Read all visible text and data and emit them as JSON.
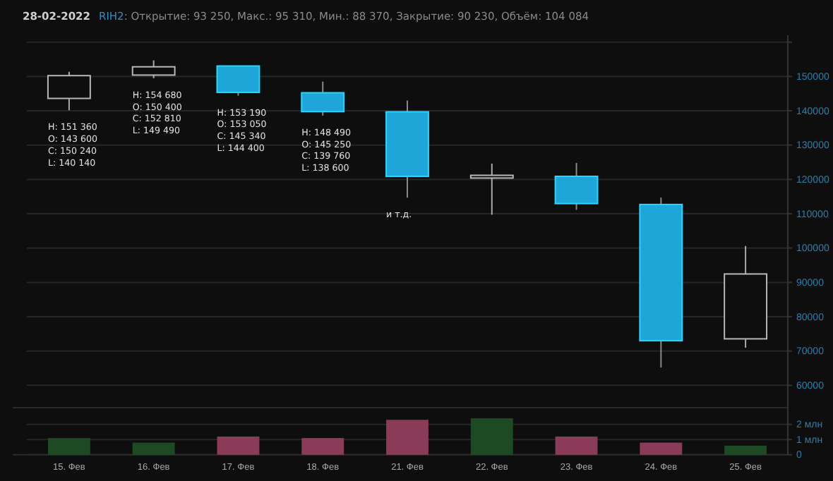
{
  "chart_data": [
    {
      "type": "candlestick",
      "title": "28-02-2022",
      "subtitle": "RIH2: Открытие: 93 250, Макс.: 95 310, Мин.: 88 370, Закрытие: 90 230, Объём: 104 084",
      "categories": [
        "15. Фев",
        "16. Фев",
        "17. Фев",
        "18. Фев",
        "21. Фев",
        "22. Фев",
        "23. Фев",
        "24. Фев",
        "25. Фев"
      ],
      "ohlc": [
        [
          143600,
          151360,
          140140,
          150240
        ],
        [
          150400,
          154680,
          149490,
          152810
        ],
        [
          153050,
          153190,
          144400,
          145340
        ],
        [
          145250,
          148490,
          138600,
          139760
        ],
        [
          139700,
          143000,
          114700,
          120900
        ],
        [
          120400,
          124600,
          109700,
          121200
        ],
        [
          120900,
          124800,
          111150,
          112950
        ],
        [
          112700,
          114700,
          65200,
          73000
        ],
        [
          73550,
          100600,
          70950,
          92450
        ]
      ],
      "colors": [
        "#0e0e0f",
        "#0e0e0f",
        "#1fa6d8",
        "#1fa6d8",
        "#1fa6d8",
        "#0e0e0f",
        "#1fa6d8",
        "#1fa6d8",
        "#0e0e0f"
      ],
      "ylim": [
        53500,
        162000
      ],
      "yticks": [
        60000,
        70000,
        80000,
        90000,
        100000,
        110000,
        120000,
        130000,
        140000,
        150000,
        {
          "value": 160000,
          "label": null
        }
      ],
      "grid": "y",
      "tick_labels": "y",
      "annotations": [
        {
          "text": "H: 151 360\nO: 143 600\nC: 150 240\nL: 140 140",
          "x": "15. Фев",
          "y": 140140
        },
        {
          "text": "H: 154 680\nO: 150 400\nC: 152 810\nL: 149 490",
          "x": "16. Фев",
          "y": 149490
        },
        {
          "text": "H: 153 190\nO: 153 050\nC: 145 340\nL: 144 400",
          "x": "17. Фев",
          "y": 144400
        },
        {
          "text": "H: 148 490\nO: 145 250\nC: 139 760\nL: 138 600",
          "x": "18. Фев",
          "y": 138600
        },
        {
          "text": "и т.д.",
          "x": "21. Фев",
          "y": 114700
        }
      ]
    },
    {
      "type": "bar",
      "categories": [
        "15. Фев",
        "16. Фев",
        "17. Фев",
        "18. Фев",
        "21. Фев",
        "22. Фев",
        "23. Фев",
        "24. Фев",
        "25. Фев"
      ],
      "values": [
        1.1,
        0.8,
        1.2,
        1.1,
        2.3,
        2.4,
        1.2,
        0.8,
        0.6
      ],
      "colors": [
        "#1d4a22",
        "#1d4a22",
        "#8a3b58",
        "#8a3b58",
        "#8a3b58",
        "#1d4a22",
        "#8a3b58",
        "#8a3b58",
        "#1d4a22"
      ],
      "ylim": [
        0,
        3.1
      ],
      "yticks": [
        0,
        {
          "value": 1,
          "label": "1 млн"
        },
        {
          "value": 2,
          "label": "2 млн"
        }
      ],
      "grid": "y"
    }
  ]
}
